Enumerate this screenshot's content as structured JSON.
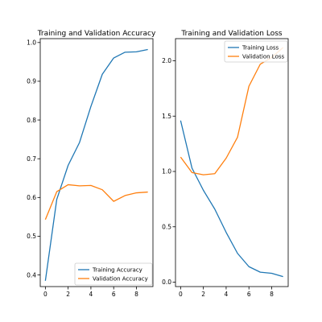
{
  "chart_data": [
    {
      "type": "line",
      "title": "Training and Validation Accuracy",
      "xlabel": "",
      "ylabel": "",
      "xlim": [
        -0.45,
        9.45
      ],
      "ylim": [
        0.37,
        1.01
      ],
      "grid": false,
      "legend_position": "lower-right",
      "x_ticks": [
        0,
        2,
        4,
        6,
        8
      ],
      "x_tick_labels": [
        "0",
        "2",
        "4",
        "6",
        "8"
      ],
      "y_ticks": [
        0.4,
        0.5,
        0.6,
        0.7,
        0.8,
        0.9,
        1.0
      ],
      "y_tick_labels": [
        "0.4",
        "0.5",
        "0.6",
        "0.7",
        "0.8",
        "0.9",
        "1.0"
      ],
      "x": [
        0,
        1,
        2,
        3,
        4,
        5,
        6,
        7,
        8,
        9
      ],
      "series": [
        {
          "name": "Training Accuracy",
          "color": "#1f77b4",
          "values": [
            0.385,
            0.595,
            0.683,
            0.742,
            0.835,
            0.918,
            0.96,
            0.975,
            0.976,
            0.982
          ]
        },
        {
          "name": "Validation Accuracy",
          "color": "#ff7f0e",
          "values": [
            0.543,
            0.615,
            0.633,
            0.63,
            0.631,
            0.62,
            0.59,
            0.605,
            0.612,
            0.614
          ]
        }
      ]
    },
    {
      "type": "line",
      "title": "Training and Validation Loss",
      "xlabel": "",
      "ylabel": "",
      "xlim": [
        -0.45,
        9.45
      ],
      "ylim": [
        -0.04,
        2.2
      ],
      "grid": false,
      "legend_position": "top-right",
      "x_ticks": [
        0,
        2,
        4,
        6,
        8
      ],
      "x_tick_labels": [
        "0",
        "2",
        "4",
        "6",
        "8"
      ],
      "y_ticks": [
        0.0,
        0.5,
        1.0,
        1.5,
        2.0
      ],
      "y_tick_labels": [
        "0.0",
        "0.5",
        "1.0",
        "1.5",
        "2.0"
      ],
      "x": [
        0,
        1,
        2,
        3,
        4,
        5,
        6,
        7,
        8,
        9
      ],
      "series": [
        {
          "name": "Training Loss",
          "color": "#1f77b4",
          "values": [
            1.46,
            1.03,
            0.83,
            0.66,
            0.45,
            0.26,
            0.14,
            0.09,
            0.08,
            0.05
          ]
        },
        {
          "name": "Validation Loss",
          "color": "#ff7f0e",
          "values": [
            1.13,
            0.99,
            0.97,
            0.98,
            1.12,
            1.31,
            1.77,
            1.97,
            2.03,
            2.12
          ]
        }
      ]
    }
  ]
}
